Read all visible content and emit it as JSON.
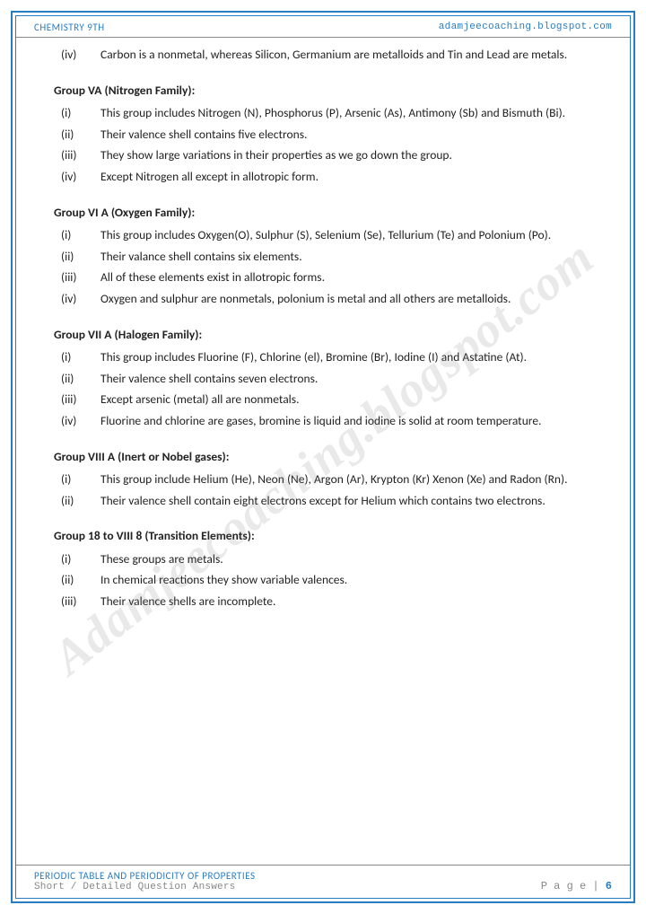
{
  "colors": {
    "accent": "#2a7cc0",
    "border": "#888",
    "text": "#222",
    "muted": "#888",
    "watermark": "rgba(120,120,120,0.16)"
  },
  "header": {
    "left": "CHEMISTRY 9TH",
    "right": "adamjeecoaching.blogspot.com"
  },
  "watermark": "Adamjeecoaching.blogspot.com",
  "intro_items": [
    {
      "num": "(iv)",
      "text": "Carbon is a nonmetal, whereas Silicon, Germanium are metalloids and Tin and Lead are metals."
    }
  ],
  "sections": [
    {
      "title": "Group VA (Nitrogen Family):",
      "items": [
        {
          "num": "(i)",
          "text": "This group includes Nitrogen (N), Phosphorus (P), Arsenic (As), Antimony (Sb) and Bismuth (Bi)."
        },
        {
          "num": "(ii)",
          "text": "Their valence shell contains five electrons."
        },
        {
          "num": "(iii)",
          "text": "They show large variations in their properties as we go down the group."
        },
        {
          "num": "(iv)",
          "text": "Except Nitrogen all except in allotropic form."
        }
      ]
    },
    {
      "title": "Group VI A (Oxygen Family):",
      "items": [
        {
          "num": "(i)",
          "text": "This group includes Oxygen(O), Sulphur (S), Selenium (Se), Tellurium (Te) and Polonium (Po)."
        },
        {
          "num": "(ii)",
          "text": "Their valance shell contains six elements."
        },
        {
          "num": "(iii)",
          "text": "All of these elements exist in allotropic forms."
        },
        {
          "num": "(iv)",
          "text": "Oxygen and sulphur are nonmetals, polonium is metal and all others are metalloids."
        }
      ]
    },
    {
      "title": "Group VII A (Halogen Family):",
      "items": [
        {
          "num": "(i)",
          "text": "This group includes Fluorine (F), Chlorine (el), Bromine (Br), Iodine (I) and Astatine (At)."
        },
        {
          "num": "(ii)",
          "text": "Their valence shell contains seven electrons."
        },
        {
          "num": "(iii)",
          "text": "Except arsenic (metal) all are nonmetals."
        },
        {
          "num": "(iv)",
          "text": "Fluorine and chlorine are gases, bromine is liquid and iodine is solid at room temperature."
        }
      ]
    },
    {
      "title": "Group VIII A (Inert or Nobel gases):",
      "items": [
        {
          "num": "(i)",
          "text": "This group include Helium (He), Neon (Ne), Argon (Ar), Krypton (Kr) Xenon (Xe) and Radon (Rn)."
        },
        {
          "num": "(ii)",
          "text": "Their valence shell contain eight electrons except for Helium which contains two electrons."
        }
      ]
    },
    {
      "title": "Group 18 to VIII 8 (Transition Elements):",
      "items": [
        {
          "num": "(i)",
          "text": "These groups are metals."
        },
        {
          "num": "(ii)",
          "text": "In chemical reactions they show variable valences."
        },
        {
          "num": "(iii)",
          "text": "Their valence shells are incomplete."
        }
      ]
    }
  ],
  "footer": {
    "title": "PERIODIC TABLE AND PERIODICITY OF PROPERTIES",
    "sub": "Short / Detailed Question Answers",
    "page_label": "P a g e  | ",
    "page_num": "6"
  }
}
